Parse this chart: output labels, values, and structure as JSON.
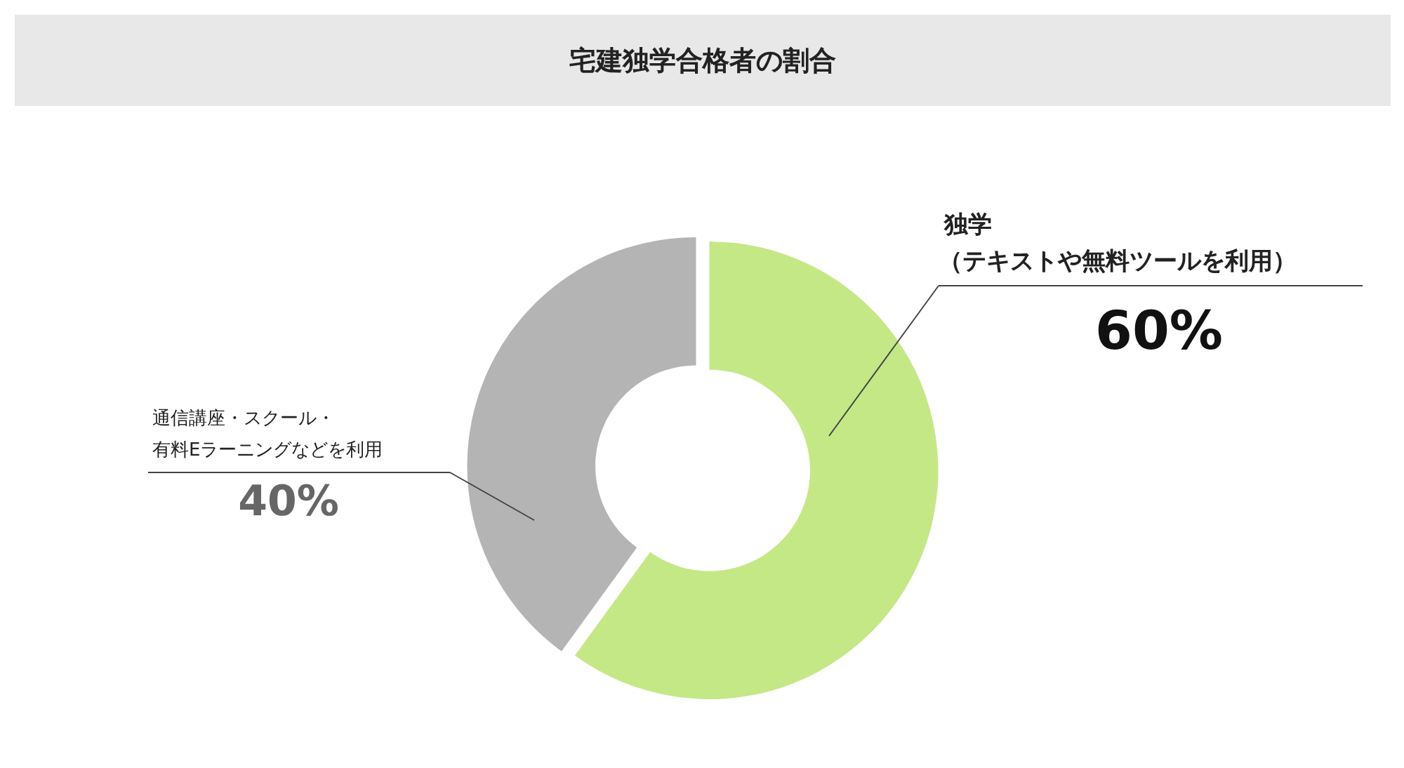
{
  "chart_data": {
    "type": "donut",
    "title": "宅建独学合格者の割合",
    "categories": [
      "独学",
      "通信講座・スクール・有料Eラーニングなどを利用"
    ],
    "annotations": [
      "（テキストや無料ツールを利用）"
    ],
    "values": [
      60,
      40
    ],
    "colors": [
      "#c4e886",
      "#b4b4b4"
    ],
    "value_labels": [
      "60%",
      "40%"
    ]
  }
}
